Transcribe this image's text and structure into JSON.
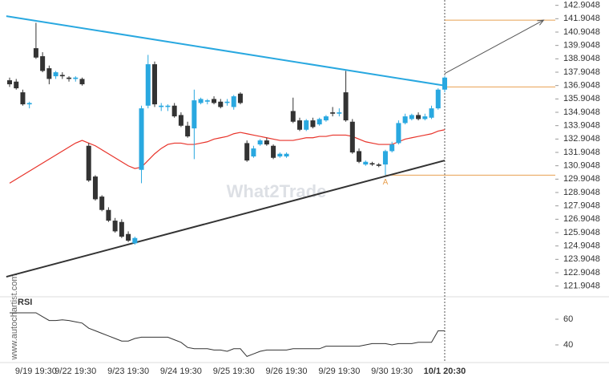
{
  "watermarks": {
    "brand": "What2Trade",
    "site": "www.autochartist.com"
  },
  "chart_data": [
    {
      "type": "candlestick",
      "categories": [
        null,
        null,
        null,
        null,
        "9/19 19:30",
        null,
        null,
        null,
        null,
        null,
        "9/22 19:30",
        null,
        null,
        null,
        null,
        null,
        null,
        null,
        "9/23 19:30",
        null,
        null,
        null,
        null,
        null,
        null,
        null,
        "9/24 19:30",
        null,
        null,
        null,
        null,
        null,
        null,
        null,
        "9/25 19:30",
        null,
        null,
        null,
        null,
        null,
        null,
        null,
        "9/26 19:30",
        null,
        null,
        null,
        null,
        null,
        null,
        null,
        "9/29 19:30",
        null,
        null,
        null,
        null,
        null,
        null,
        null,
        "9/30 19:30",
        null,
        null,
        null,
        null,
        null,
        null,
        null,
        "10/1 20:30"
      ],
      "candles": [
        [
          137.3,
          137.5,
          136.8,
          137.0
        ],
        [
          137.2,
          137.4,
          136.6,
          136.7
        ],
        [
          136.4,
          136.6,
          135.4,
          135.5
        ],
        [
          135.5,
          135.7,
          135.2,
          135.6
        ],
        [
          139.7,
          141.6,
          138.9,
          139.0
        ],
        [
          139.1,
          139.4,
          137.9,
          138.0
        ],
        [
          138.2,
          138.4,
          137.0,
          137.4
        ],
        [
          137.6,
          138.0,
          137.4,
          137.9
        ],
        [
          137.7,
          137.9,
          137.4,
          137.6
        ],
        [
          137.5,
          137.6,
          137.2,
          137.4
        ],
        [
          137.4,
          137.6,
          137.2,
          137.5
        ],
        [
          137.4,
          137.5,
          136.9,
          137.0
        ],
        [
          132.4,
          132.6,
          129.7,
          129.8
        ],
        [
          130.1,
          130.2,
          128.3,
          128.4
        ],
        [
          128.6,
          128.7,
          127.5,
          127.6
        ],
        [
          127.6,
          127.8,
          126.7,
          126.8
        ],
        [
          126.8,
          127.0,
          125.9,
          126.0
        ],
        [
          126.7,
          126.9,
          125.5,
          125.6
        ],
        [
          125.8,
          126.0,
          125.2,
          125.3
        ],
        [
          125.1,
          125.6,
          125.0,
          125.5
        ],
        [
          130.6,
          135.4,
          129.6,
          135.2
        ],
        [
          135.4,
          139.2,
          135.2,
          138.5
        ],
        [
          138.5,
          138.7,
          135.3,
          135.5
        ],
        [
          135.3,
          135.6,
          135.0,
          135.4
        ],
        [
          135.3,
          135.5,
          135.0,
          135.4
        ],
        [
          135.4,
          135.6,
          134.5,
          134.6
        ],
        [
          134.7,
          134.9,
          133.8,
          133.9
        ],
        [
          133.9,
          134.2,
          133.0,
          133.1
        ],
        [
          133.7,
          136.6,
          131.4,
          135.8
        ],
        [
          135.6,
          136.0,
          135.5,
          135.9
        ],
        [
          135.7,
          135.9,
          135.5,
          135.8
        ],
        [
          135.9,
          136.1,
          135.5,
          135.6
        ],
        [
          135.7,
          135.9,
          135.2,
          135.3
        ],
        [
          135.6,
          135.9,
          135.4,
          135.7
        ],
        [
          135.3,
          136.2,
          135.1,
          136.1
        ],
        [
          136.3,
          136.4,
          135.5,
          135.6
        ],
        [
          132.6,
          132.8,
          131.2,
          131.3
        ],
        [
          131.6,
          132.4,
          131.5,
          132.2
        ],
        [
          132.5,
          132.9,
          132.4,
          132.8
        ],
        [
          132.8,
          133.0,
          132.4,
          132.5
        ],
        [
          132.4,
          132.5,
          131.4,
          131.5
        ],
        [
          131.6,
          131.9,
          131.5,
          131.8
        ],
        [
          131.6,
          131.9,
          131.5,
          131.8
        ],
        [
          135.0,
          136.0,
          134.1,
          134.2
        ],
        [
          134.3,
          134.5,
          133.5,
          133.6
        ],
        [
          133.6,
          134.4,
          133.5,
          134.3
        ],
        [
          134.3,
          134.5,
          133.7,
          133.8
        ],
        [
          134.0,
          134.5,
          133.9,
          134.4
        ],
        [
          134.3,
          134.7,
          134.2,
          134.6
        ],
        [
          134.9,
          135.3,
          134.6,
          134.8
        ],
        [
          134.8,
          135.2,
          134.6,
          134.9
        ],
        [
          136.4,
          138.0,
          134.2,
          134.3
        ],
        [
          134.2,
          134.4,
          131.8,
          131.9
        ],
        [
          132.0,
          132.2,
          131.1,
          131.2
        ],
        [
          131.0,
          131.3,
          130.9,
          131.2
        ],
        [
          131.1,
          131.2,
          130.9,
          131.0
        ],
        [
          131.0,
          131.1,
          130.8,
          130.9
        ],
        [
          131.0,
          132.1,
          130.2,
          132.0
        ],
        [
          132.0,
          132.7,
          131.9,
          132.5
        ],
        [
          132.6,
          134.3,
          132.5,
          134.1
        ],
        [
          134.1,
          134.8,
          134.0,
          134.6
        ],
        [
          134.4,
          134.8,
          134.3,
          134.7
        ],
        [
          134.7,
          134.9,
          134.3,
          134.4
        ],
        [
          134.4,
          134.8,
          134.3,
          134.6
        ],
        [
          134.5,
          135.4,
          134.4,
          135.2
        ],
        [
          135.2,
          136.7,
          135.1,
          136.6
        ],
        [
          136.6,
          137.6,
          136.4,
          137.5
        ]
      ],
      "up_color": "#29a8e0",
      "down_color": "#333333",
      "moving_average": {
        "color": "#e8332a",
        "values": [
          129.6,
          129.9,
          130.2,
          130.5,
          130.8,
          131.1,
          131.4,
          131.7,
          132.0,
          132.3,
          132.6,
          132.8,
          132.6,
          132.4,
          132.1,
          131.8,
          131.5,
          131.2,
          130.9,
          130.7,
          130.8,
          131.3,
          131.8,
          132.2,
          132.5,
          132.6,
          132.6,
          132.5,
          132.5,
          132.6,
          132.7,
          132.9,
          133.0,
          133.1,
          133.3,
          133.4,
          133.3,
          133.2,
          133.1,
          133.0,
          132.9,
          132.8,
          132.8,
          132.8,
          132.9,
          133.0,
          133.0,
          133.1,
          133.1,
          133.2,
          133.2,
          133.2,
          133.1,
          132.9,
          132.7,
          132.6,
          132.5,
          132.5,
          132.5,
          132.7,
          132.9,
          133.0,
          133.1,
          133.2,
          133.3,
          133.5,
          133.6
        ]
      },
      "trendlines": [
        {
          "color": "#29a8e0",
          "x": [
            -0.5,
            66
          ],
          "y": [
            142.1,
            136.9
          ]
        },
        {
          "color": "#333333",
          "x": [
            -0.5,
            66
          ],
          "y": [
            122.6,
            131.3
          ]
        }
      ],
      "level_color": "#e8a050",
      "levels": [
        {
          "value": 141.8,
          "x0": 66
        },
        {
          "value": 136.8,
          "x0": 66
        },
        {
          "value": 130.2,
          "x0": 57,
          "label": "A"
        }
      ],
      "forecast_arrow": {
        "color": "#555555",
        "x": [
          66,
          81
        ],
        "y": [
          137.8,
          141.8
        ]
      },
      "ylim": [
        121.1048,
        143.3048
      ],
      "yticks": [
        142.9048,
        141.9048,
        140.9048,
        139.9048,
        138.9048,
        137.9048,
        136.9048,
        135.9048,
        134.9048,
        133.9048,
        132.9048,
        131.9048,
        130.9048,
        129.9048,
        128.9048,
        127.9048,
        126.9048,
        125.9048,
        124.9048,
        123.9048,
        122.9048,
        121.9048
      ]
    },
    {
      "type": "line",
      "title": "RSI",
      "color": "#333333",
      "values": [
        65,
        65,
        65,
        65,
        65,
        62,
        59,
        59,
        59.5,
        59,
        58,
        57,
        53,
        51,
        49,
        47,
        45,
        43,
        43,
        45,
        46,
        46,
        46,
        46,
        46,
        44,
        42,
        38,
        37,
        37,
        37,
        36,
        36,
        35,
        37,
        37,
        31,
        33,
        35,
        36,
        36,
        36,
        36,
        37,
        37,
        37,
        37,
        37,
        39,
        39,
        39,
        39,
        39,
        39,
        40,
        41,
        41,
        41,
        40,
        41,
        41,
        41,
        42,
        42,
        42,
        51,
        51
      ],
      "ylim": [
        27.5,
        77.5
      ],
      "yticks": [
        40,
        60
      ]
    }
  ]
}
